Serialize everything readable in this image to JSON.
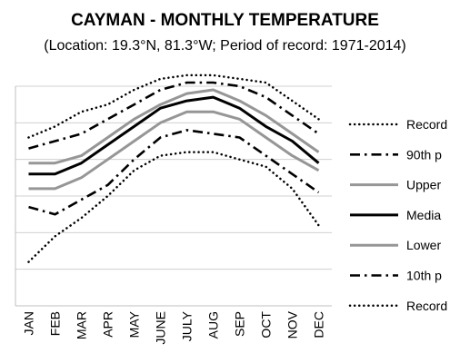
{
  "chart_data": {
    "type": "line",
    "title": "CAYMAN - MONTHLY TEMPERATURE",
    "subtitle": "(Location: 19.3°N, 81.3°W; Period of record: 1971-2014)",
    "categories": [
      "JAN",
      "FEB",
      "MAR",
      "APR",
      "MAY",
      "JUNE",
      "JULY",
      "AUG",
      "SEP",
      "OCT",
      "NOV",
      "DEC"
    ],
    "ylim": [
      0,
      6
    ],
    "grid": true,
    "legend_position": "right",
    "series": [
      {
        "name": "Record",
        "style": "dotted",
        "color": "#000000",
        "values": [
          4.6,
          4.9,
          5.3,
          5.5,
          5.9,
          6.2,
          6.3,
          6.3,
          6.2,
          6.1,
          5.6,
          5.1
        ]
      },
      {
        "name": "90th p",
        "style": "dash-dot",
        "color": "#000000",
        "values": [
          4.3,
          4.5,
          4.7,
          5.1,
          5.5,
          5.9,
          6.1,
          6.1,
          6.0,
          5.7,
          5.2,
          4.7
        ]
      },
      {
        "name": "Upper",
        "style": "solid",
        "color": "#969696",
        "values": [
          3.9,
          3.9,
          4.1,
          4.6,
          5.1,
          5.5,
          5.8,
          5.9,
          5.6,
          5.2,
          4.7,
          4.2
        ]
      },
      {
        "name": "Media",
        "style": "solid-thick",
        "color": "#000000",
        "values": [
          3.6,
          3.6,
          3.9,
          4.4,
          4.9,
          5.4,
          5.6,
          5.7,
          5.4,
          4.9,
          4.5,
          3.9
        ]
      },
      {
        "name": "Lower",
        "style": "solid",
        "color": "#969696",
        "values": [
          3.2,
          3.2,
          3.5,
          4.0,
          4.5,
          5.0,
          5.3,
          5.3,
          5.1,
          4.6,
          4.1,
          3.7
        ]
      },
      {
        "name": "10th p",
        "style": "dash-dot",
        "color": "#000000",
        "values": [
          2.7,
          2.5,
          2.9,
          3.3,
          4.0,
          4.6,
          4.8,
          4.7,
          4.6,
          4.1,
          3.6,
          3.1
        ]
      },
      {
        "name": "Record",
        "style": "dotted",
        "color": "#000000",
        "values": [
          1.2,
          1.9,
          2.4,
          3.0,
          3.7,
          4.1,
          4.2,
          4.2,
          4.0,
          3.8,
          3.2,
          2.2
        ]
      }
    ]
  }
}
